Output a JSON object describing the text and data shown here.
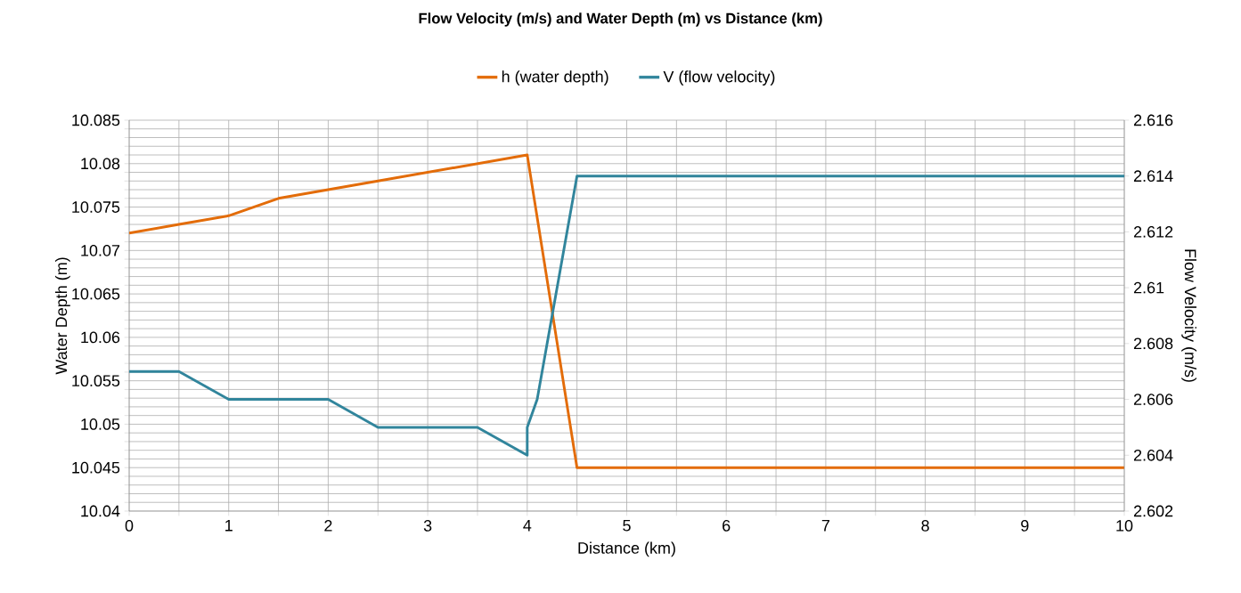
{
  "chart_data": {
    "type": "line",
    "title": "Flow Velocity (m/s) and Water Depth (m) vs Distance (km)",
    "xlabel": "Distance (km)",
    "ylabel": "Water Depth (m)",
    "y2label": "Flow Velocity (m/s)",
    "legend": "top",
    "grid": true,
    "xlim": [
      0,
      10
    ],
    "xticks": [
      0,
      {
        "value": 0.5,
        "label": null
      },
      1,
      {
        "value": 1.5,
        "label": null
      },
      2,
      {
        "value": 2.5,
        "label": null
      },
      3,
      {
        "value": 3.5,
        "label": null
      },
      4,
      {
        "value": 4.5,
        "label": null
      },
      5,
      {
        "value": 5.5,
        "label": null
      },
      6,
      {
        "value": 6.5,
        "label": null
      },
      7,
      {
        "value": 7.5,
        "label": null
      },
      8,
      {
        "value": 8.5,
        "label": null
      },
      9,
      {
        "value": 9.5,
        "label": null
      },
      10
    ],
    "ylim": [
      10.04,
      10.085
    ],
    "yticks": [
      10.04,
      {
        "value": 10.041,
        "label": null
      },
      {
        "value": 10.042,
        "label": null
      },
      {
        "value": 10.043,
        "label": null
      },
      {
        "value": 10.044,
        "label": null
      },
      10.045,
      {
        "value": 10.046,
        "label": null
      },
      {
        "value": 10.047,
        "label": null
      },
      {
        "value": 10.048,
        "label": null
      },
      {
        "value": 10.049,
        "label": null
      },
      10.05,
      {
        "value": 10.051,
        "label": null
      },
      {
        "value": 10.052,
        "label": null
      },
      {
        "value": 10.053,
        "label": null
      },
      {
        "value": 10.054,
        "label": null
      },
      10.055,
      {
        "value": 10.056,
        "label": null
      },
      {
        "value": 10.057,
        "label": null
      },
      {
        "value": 10.058,
        "label": null
      },
      {
        "value": 10.059,
        "label": null
      },
      10.06,
      {
        "value": 10.061,
        "label": null
      },
      {
        "value": 10.062,
        "label": null
      },
      {
        "value": 10.063,
        "label": null
      },
      {
        "value": 10.064,
        "label": null
      },
      10.065,
      {
        "value": 10.066,
        "label": null
      },
      {
        "value": 10.067,
        "label": null
      },
      {
        "value": 10.068,
        "label": null
      },
      {
        "value": 10.069,
        "label": null
      },
      10.07,
      {
        "value": 10.071,
        "label": null
      },
      {
        "value": 10.072,
        "label": null
      },
      {
        "value": 10.073,
        "label": null
      },
      {
        "value": 10.074,
        "label": null
      },
      10.075,
      {
        "value": 10.076,
        "label": null
      },
      {
        "value": 10.077,
        "label": null
      },
      {
        "value": 10.078,
        "label": null
      },
      {
        "value": 10.079,
        "label": null
      },
      10.08,
      {
        "value": 10.081,
        "label": null
      },
      {
        "value": 10.082,
        "label": null
      },
      {
        "value": 10.083,
        "label": null
      },
      {
        "value": 10.084,
        "label": null
      },
      10.085
    ],
    "y2lim": [
      2.602,
      2.616
    ],
    "y2ticks": [
      2.602,
      2.604,
      2.606,
      2.608,
      2.61,
      2.612,
      2.614,
      2.616
    ],
    "series": [
      {
        "name": "h (water depth)",
        "color": "#e36c09",
        "x": [
          0,
          0.5,
          1,
          1.5,
          2,
          2.5,
          3,
          3.5,
          4,
          4.5,
          5,
          5.5,
          6,
          6.5,
          7,
          7.5,
          8,
          8.5,
          9,
          9.5,
          10
        ],
        "values": [
          10.072,
          10.073,
          10.074,
          10.076,
          10.077,
          10.078,
          10.079,
          10.08,
          10.081,
          10.045,
          10.045,
          10.045,
          10.045,
          10.045,
          10.045,
          10.045,
          10.045,
          10.045,
          10.045,
          10.045,
          10.045
        ]
      },
      {
        "name": "V (flow velocity)",
        "color": "#31859c",
        "axis": "y2",
        "x": [
          0,
          0.5,
          1,
          1.5,
          2,
          2.5,
          3,
          3.5,
          4,
          4,
          4.1,
          4.5,
          5,
          5.5,
          6,
          6.5,
          7,
          7.5,
          8,
          8.5,
          9,
          9.5,
          10
        ],
        "values": [
          2.607,
          2.607,
          2.606,
          2.606,
          2.606,
          2.605,
          2.605,
          2.605,
          2.604,
          2.605,
          2.606,
          2.614,
          2.614,
          2.614,
          2.614,
          2.614,
          2.614,
          2.614,
          2.614,
          2.614,
          2.614,
          2.614,
          2.614
        ]
      }
    ]
  }
}
